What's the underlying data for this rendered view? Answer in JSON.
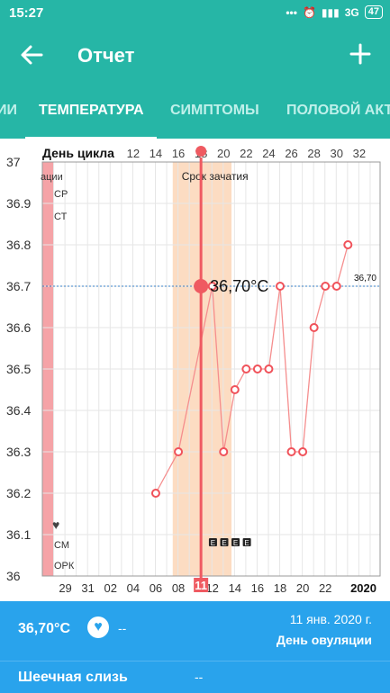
{
  "status_bar": {
    "time": "15:27",
    "network": "3G",
    "battery": "47"
  },
  "app_bar": {
    "title": "Отчет"
  },
  "tabs": [
    {
      "label": "ИИ",
      "active": false
    },
    {
      "label": "ТЕМПЕРАТУРА",
      "active": true
    },
    {
      "label": "СИМПТОМЫ",
      "active": false
    },
    {
      "label": "ПОЛОВОЙ АКТ",
      "active": false
    }
  ],
  "chart_data": {
    "type": "line",
    "title": "День цикла",
    "top_axis_label": "День цикла",
    "cycle_day_ticks": [
      "12",
      "14",
      "16",
      "18",
      "20",
      "22",
      "24",
      "26",
      "28",
      "30",
      "32"
    ],
    "date_ticks": [
      "29",
      "31",
      "02",
      "04",
      "06",
      "08",
      "10",
      "11",
      "12",
      "14",
      "16",
      "18",
      "20",
      "22"
    ],
    "year_label": "2020",
    "ylim": [
      36,
      37
    ],
    "y_ticks": [
      "37",
      "36.9",
      "36.8",
      "36.7",
      "36.6",
      "36.5",
      "36.4",
      "36.3",
      "36.2",
      "36.1",
      "36"
    ],
    "series": [
      {
        "x": [
          12,
          14,
          17,
          18,
          19,
          20,
          21,
          22,
          23,
          24,
          25,
          26,
          27,
          28,
          29
        ],
        "y": [
          36.2,
          36.3,
          36.7,
          36.3,
          36.45,
          36.5,
          36.5,
          36.5,
          36.7,
          36.3,
          36.3,
          36.6,
          36.7,
          36.7,
          36.8
        ]
      }
    ],
    "reference_line": {
      "value": 36.7,
      "label": "36,70"
    },
    "selected": {
      "x": 16,
      "y": 36.7,
      "label": "36,70°C",
      "date": "11"
    },
    "fertile_window": {
      "label": "Срок зачатия",
      "from_x": 13.5,
      "to_x": 18.7
    },
    "period_band": {
      "to_x": 3
    },
    "left_labels": [
      "ации",
      "СР",
      "СТ",
      "СМ",
      "ОРК"
    ],
    "heart_marker": "heart-icon",
    "symptom_marks": [
      "E",
      "E",
      "E",
      "E"
    ],
    "colors": {
      "line": "#f58e8e",
      "point": "#f0525a",
      "fertile": "#fcdcc2",
      "period": "#f5a3a7",
      "reference": "#3a82c8",
      "selected": "#ef5a61"
    }
  },
  "summary": {
    "temperature": "36,70°C",
    "heart_icon": "heart-icon",
    "note": "--",
    "date": "11 янв. 2020 г.",
    "day_label": "День овуляции"
  },
  "cervical": {
    "label": "Шеечная слизь",
    "value": "--"
  }
}
